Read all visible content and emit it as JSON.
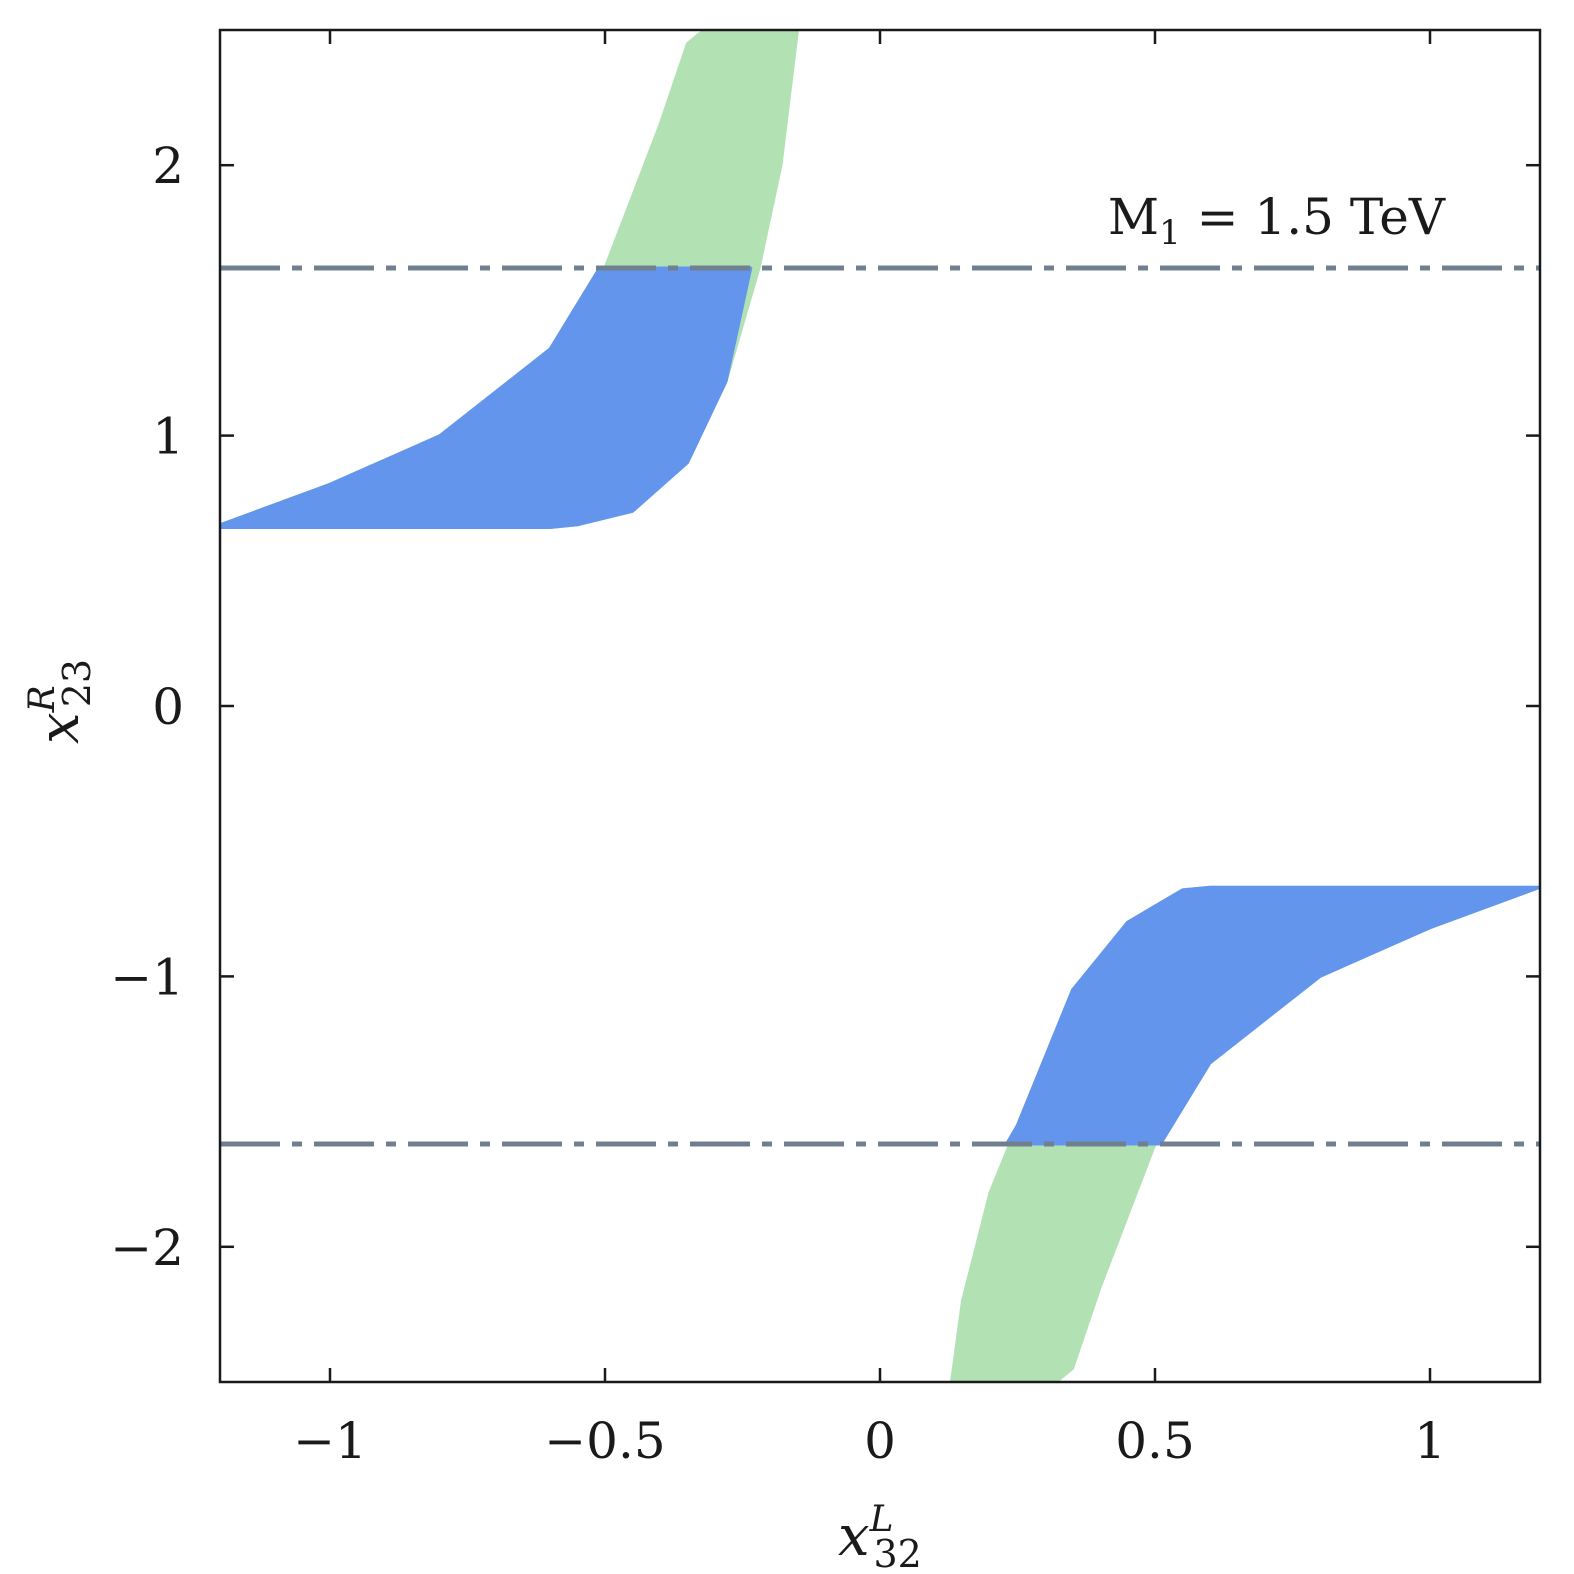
{
  "chart_data": {
    "type": "area",
    "title": "",
    "xlabel": {
      "base": "x",
      "sup": "L",
      "sub": "32"
    },
    "ylabel": {
      "base": "x",
      "sup": "R",
      "sub": "23"
    },
    "xlim": [
      -1.2,
      1.2
    ],
    "ylim": [
      -2.5,
      2.5
    ],
    "xticks": [
      -1,
      -0.5,
      0,
      0.5,
      1
    ],
    "xtick_labels": [
      "−1",
      "−0.5",
      "0",
      "0.5",
      "1"
    ],
    "yticks": [
      -2,
      -1,
      0,
      1,
      2
    ],
    "ytick_labels": [
      "−2",
      "−1",
      "0",
      "1",
      "2"
    ],
    "grid": false,
    "annotation": {
      "text": "M",
      "sub": "1",
      "rest": " = 1.5 TeV"
    },
    "colors": {
      "green": "#b2e2b4",
      "blue": "#6495ed",
      "dashdot": "#708090",
      "axis": "#1a1a1a"
    },
    "reference_lines": [
      {
        "y": 1.62,
        "style": "dash-dot"
      },
      {
        "y": -1.62,
        "style": "dash-dot"
      }
    ],
    "series": [
      {
        "color": "green",
        "region": "upper-left",
        "x": [
          -1.2,
          -1.0,
          -0.8,
          -0.6,
          -0.5,
          -0.4,
          -0.35,
          -0.32,
          -0.32,
          -0.15,
          -0.18,
          -0.22,
          -0.28,
          -0.35,
          -0.45,
          -0.55,
          -0.6,
          -1.2
        ],
        "y": [
          0.67,
          0.82,
          1.0,
          1.32,
          1.62,
          2.15,
          2.45,
          2.5,
          2.5,
          2.5,
          2.0,
          1.62,
          1.2,
          0.9,
          0.72,
          0.67,
          0.66,
          0.66
        ]
      },
      {
        "color": "blue",
        "region": "upper-left",
        "x": [
          -1.2,
          -1.0,
          -0.8,
          -0.6,
          -0.51,
          -0.235,
          -0.28,
          -0.35,
          -0.45,
          -0.55,
          -0.6,
          -1.2
        ],
        "y": [
          0.67,
          0.82,
          1.0,
          1.32,
          1.62,
          1.62,
          1.2,
          0.9,
          0.72,
          0.67,
          0.66,
          0.66
        ]
      },
      {
        "color": "green",
        "region": "lower-right",
        "x": [
          1.2,
          1.0,
          0.8,
          0.6,
          0.5,
          0.4,
          0.35,
          0.32,
          0.32,
          0.13,
          0.15,
          0.2,
          0.25,
          0.35,
          0.45,
          0.55,
          0.6,
          1.2
        ],
        "y": [
          -0.67,
          -0.82,
          -1.0,
          -1.32,
          -1.62,
          -2.15,
          -2.45,
          -2.5,
          -2.5,
          -2.5,
          -2.2,
          -1.8,
          -1.55,
          -1.05,
          -0.8,
          -0.68,
          -0.67,
          -0.67
        ]
      },
      {
        "color": "blue",
        "region": "lower-right",
        "x": [
          1.2,
          1.0,
          0.8,
          0.6,
          0.51,
          0.23,
          0.25,
          0.35,
          0.45,
          0.55,
          0.6,
          1.2
        ],
        "y": [
          -0.67,
          -0.82,
          -1.0,
          -1.32,
          -1.62,
          -1.62,
          -1.55,
          -1.05,
          -0.8,
          -0.68,
          -0.67,
          -0.67
        ]
      }
    ]
  }
}
